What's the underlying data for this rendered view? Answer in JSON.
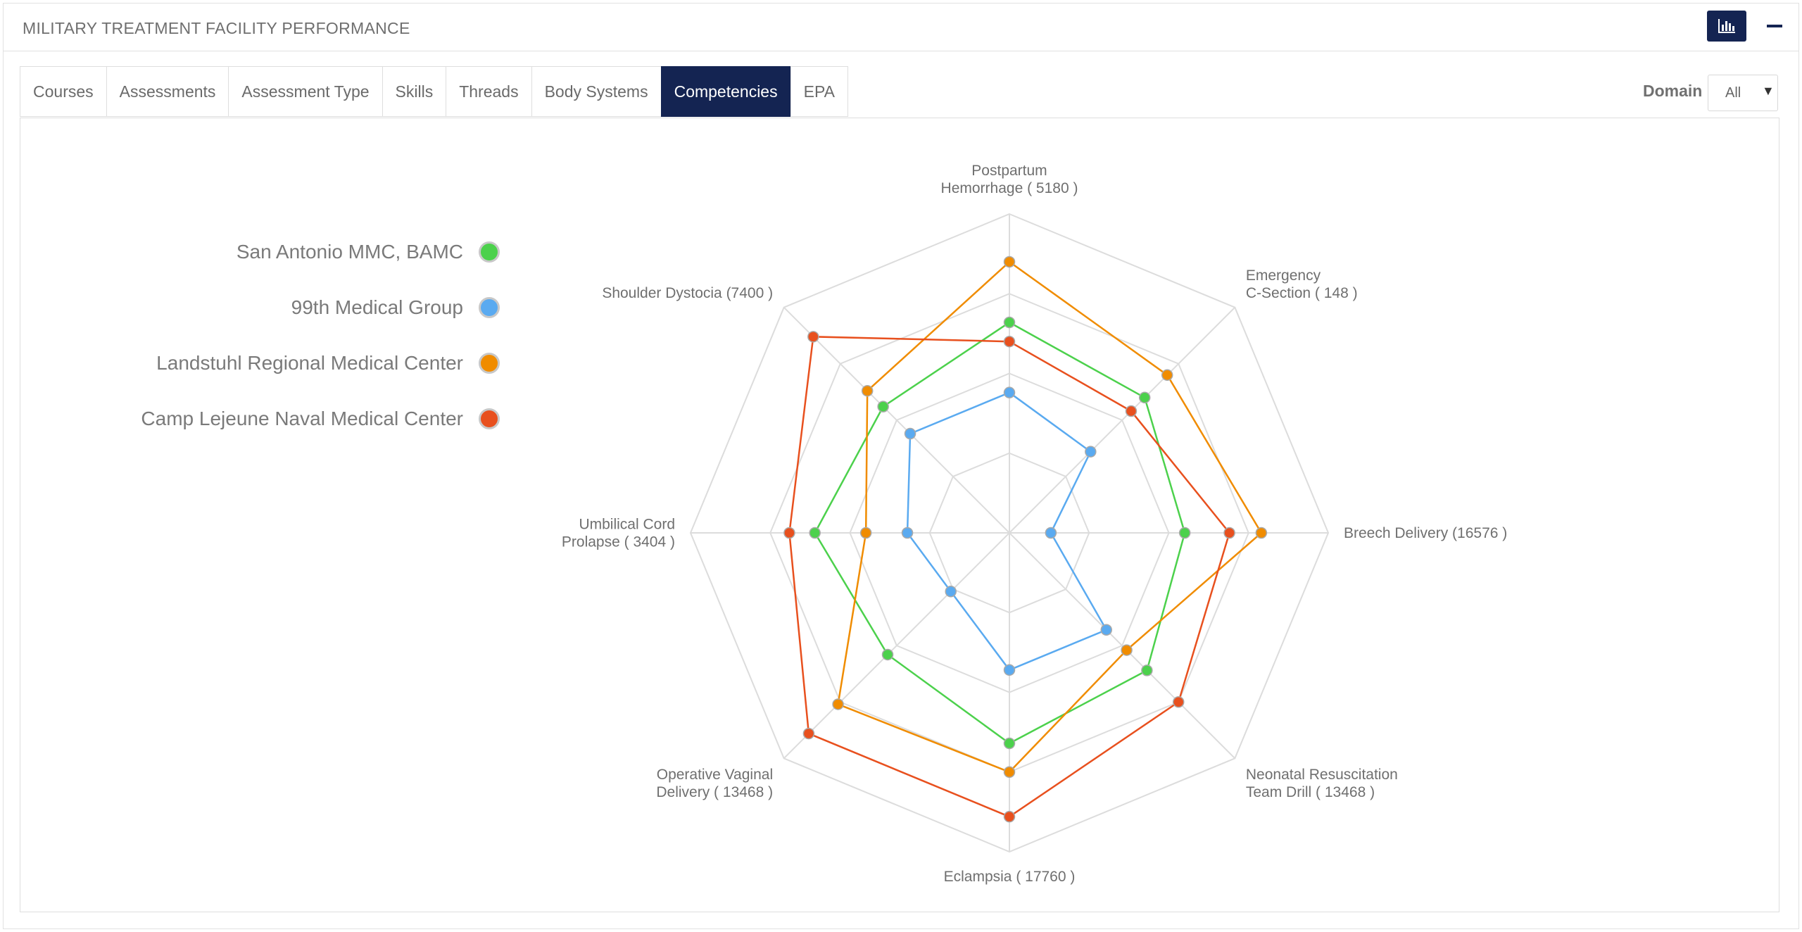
{
  "panel": {
    "title": "MILITARY TREATMENT FACILITY PERFORMANCE",
    "chart_toggle_icon": "bar-chart-icon",
    "minimize_icon": "minus-icon"
  },
  "tabs": [
    {
      "label": "Courses",
      "active": false
    },
    {
      "label": "Assessments",
      "active": false
    },
    {
      "label": "Assessment Type",
      "active": false
    },
    {
      "label": "Skills",
      "active": false
    },
    {
      "label": "Threads",
      "active": false
    },
    {
      "label": "Body Systems",
      "active": false
    },
    {
      "label": "Competencies",
      "active": true
    },
    {
      "label": "EPA",
      "active": false
    }
  ],
  "filter": {
    "label": "Domain",
    "selected": "All"
  },
  "legend": [
    {
      "label": "San Antonio MMC, BAMC",
      "color": "#4cd14c"
    },
    {
      "label": "99th Medical Group",
      "color": "#5aaaf0"
    },
    {
      "label": "Landstuhl Regional Medical Center",
      "color": "#f08c00"
    },
    {
      "label": "Camp Lejeune Naval Medical Center",
      "color": "#e8501e"
    }
  ],
  "chart_data": {
    "type": "radar",
    "axes": [
      {
        "lines": [
          "Postpartum",
          "Hemorrhage ( 5180 )"
        ]
      },
      {
        "lines": [
          "Emergency",
          "C-Section ( 148 )"
        ]
      },
      {
        "lines": [
          "Breech Delivery  (16576 )"
        ]
      },
      {
        "lines": [
          "Neonatal Resuscitation",
          "Team Drill  ( 13468 )"
        ]
      },
      {
        "lines": [
          "Eclampsia  ( 17760 )"
        ]
      },
      {
        "lines": [
          "Operative Vaginal",
          "Delivery  ( 13468 )"
        ]
      },
      {
        "lines": [
          "Umbilical Cord",
          "Prolapse ( 3404 )"
        ]
      },
      {
        "lines": [
          "Shoulder Dystocia  (7400 )"
        ]
      }
    ],
    "rmax": 100,
    "rings": 4,
    "series": [
      {
        "name": "San Antonio MMC, BAMC",
        "color": "#4cd14c",
        "values": [
          66,
          60,
          55,
          61,
          66,
          54,
          61,
          56
        ]
      },
      {
        "name": "99th Medical Group",
        "color": "#5aaaf0",
        "values": [
          44,
          36,
          13,
          43,
          43,
          26,
          32,
          44
        ]
      },
      {
        "name": "Landstuhl Regional Medical Center",
        "color": "#f08c00",
        "values": [
          85,
          70,
          79,
          52,
          75,
          76,
          45,
          63
        ]
      },
      {
        "name": "Camp Lejeune Naval Medical Center",
        "color": "#e8501e",
        "values": [
          60,
          54,
          69,
          75,
          89,
          89,
          69,
          87
        ]
      }
    ]
  }
}
